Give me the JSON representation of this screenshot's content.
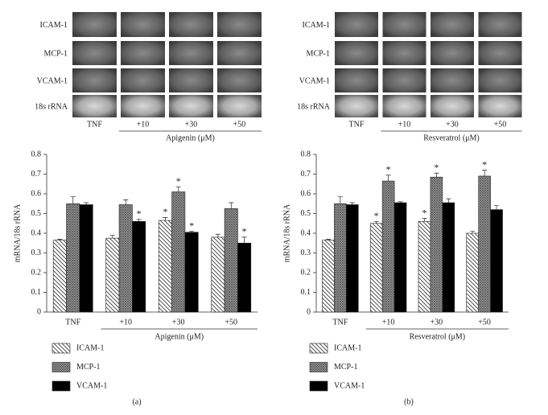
{
  "gels": [
    {
      "rows": [
        "ICAM-1",
        "MCP-1",
        "VCAM-1",
        "18s rRNA"
      ],
      "lanes": [
        "TNF",
        "+10",
        "+30",
        "+50"
      ],
      "treatment": "Apigenin (μM)"
    },
    {
      "rows": [
        "ICAM-1",
        "MCP-1",
        "VCAM-1",
        "18s rRNA"
      ],
      "lanes": [
        "TNF",
        "+10",
        "+30",
        "+50"
      ],
      "treatment": "Resveratrol (μM)"
    }
  ],
  "chart_data": [
    {
      "type": "bar",
      "caption": "(a)",
      "ylabel": "mRNA/18s rRNA",
      "xlabel": "Apigenin (μM)",
      "categories": [
        "TNF",
        "+10",
        "+30",
        "+50"
      ],
      "ylim": [
        0,
        0.8
      ],
      "yticks": [
        0,
        0.1,
        0.2,
        0.3,
        0.4,
        0.5,
        0.6,
        0.7,
        0.8
      ],
      "grid": false,
      "series": [
        {
          "name": "ICAM-1",
          "color": "#333333",
          "pattern": "hatch",
          "values": [
            0.365,
            0.375,
            0.465,
            0.38
          ],
          "errors": [
            0.005,
            0.015,
            0.015,
            0.015
          ],
          "significance": [
            null,
            null,
            "*",
            null
          ]
        },
        {
          "name": "MCP-1",
          "color": "#555555",
          "pattern": "crosshatch",
          "values": [
            0.55,
            0.545,
            0.61,
            0.525
          ],
          "errors": [
            0.035,
            0.025,
            0.025,
            0.03
          ],
          "significance": [
            null,
            null,
            "*",
            null
          ]
        },
        {
          "name": "VCAM-1",
          "color": "#000000",
          "pattern": "solid",
          "values": [
            0.545,
            0.46,
            0.405,
            0.35
          ],
          "errors": [
            0.01,
            0.01,
            0.005,
            0.03
          ],
          "significance": [
            null,
            "*",
            "*",
            "*"
          ]
        }
      ]
    },
    {
      "type": "bar",
      "caption": "(b)",
      "ylabel": "mRNA/18s rRNA",
      "xlabel": "Resveratrol (μM)",
      "categories": [
        "TNF",
        "+10",
        "+30",
        "+50"
      ],
      "ylim": [
        0,
        0.8
      ],
      "yticks": [
        0,
        0.1,
        0.2,
        0.3,
        0.4,
        0.5,
        0.6,
        0.7,
        0.8
      ],
      "grid": false,
      "series": [
        {
          "name": "ICAM-1",
          "color": "#333333",
          "pattern": "hatch",
          "values": [
            0.365,
            0.45,
            0.46,
            0.4
          ],
          "errors": [
            0.005,
            0.01,
            0.015,
            0.01
          ],
          "significance": [
            null,
            "*",
            "*",
            null
          ]
        },
        {
          "name": "MCP-1",
          "color": "#555555",
          "pattern": "crosshatch",
          "values": [
            0.55,
            0.665,
            0.685,
            0.69
          ],
          "errors": [
            0.035,
            0.03,
            0.02,
            0.03
          ],
          "significance": [
            null,
            "*",
            "*",
            "*"
          ]
        },
        {
          "name": "VCAM-1",
          "color": "#000000",
          "pattern": "solid",
          "values": [
            0.545,
            0.555,
            0.555,
            0.52
          ],
          "errors": [
            0.01,
            0.005,
            0.02,
            0.02
          ],
          "significance": [
            null,
            null,
            null,
            null
          ]
        }
      ]
    }
  ]
}
